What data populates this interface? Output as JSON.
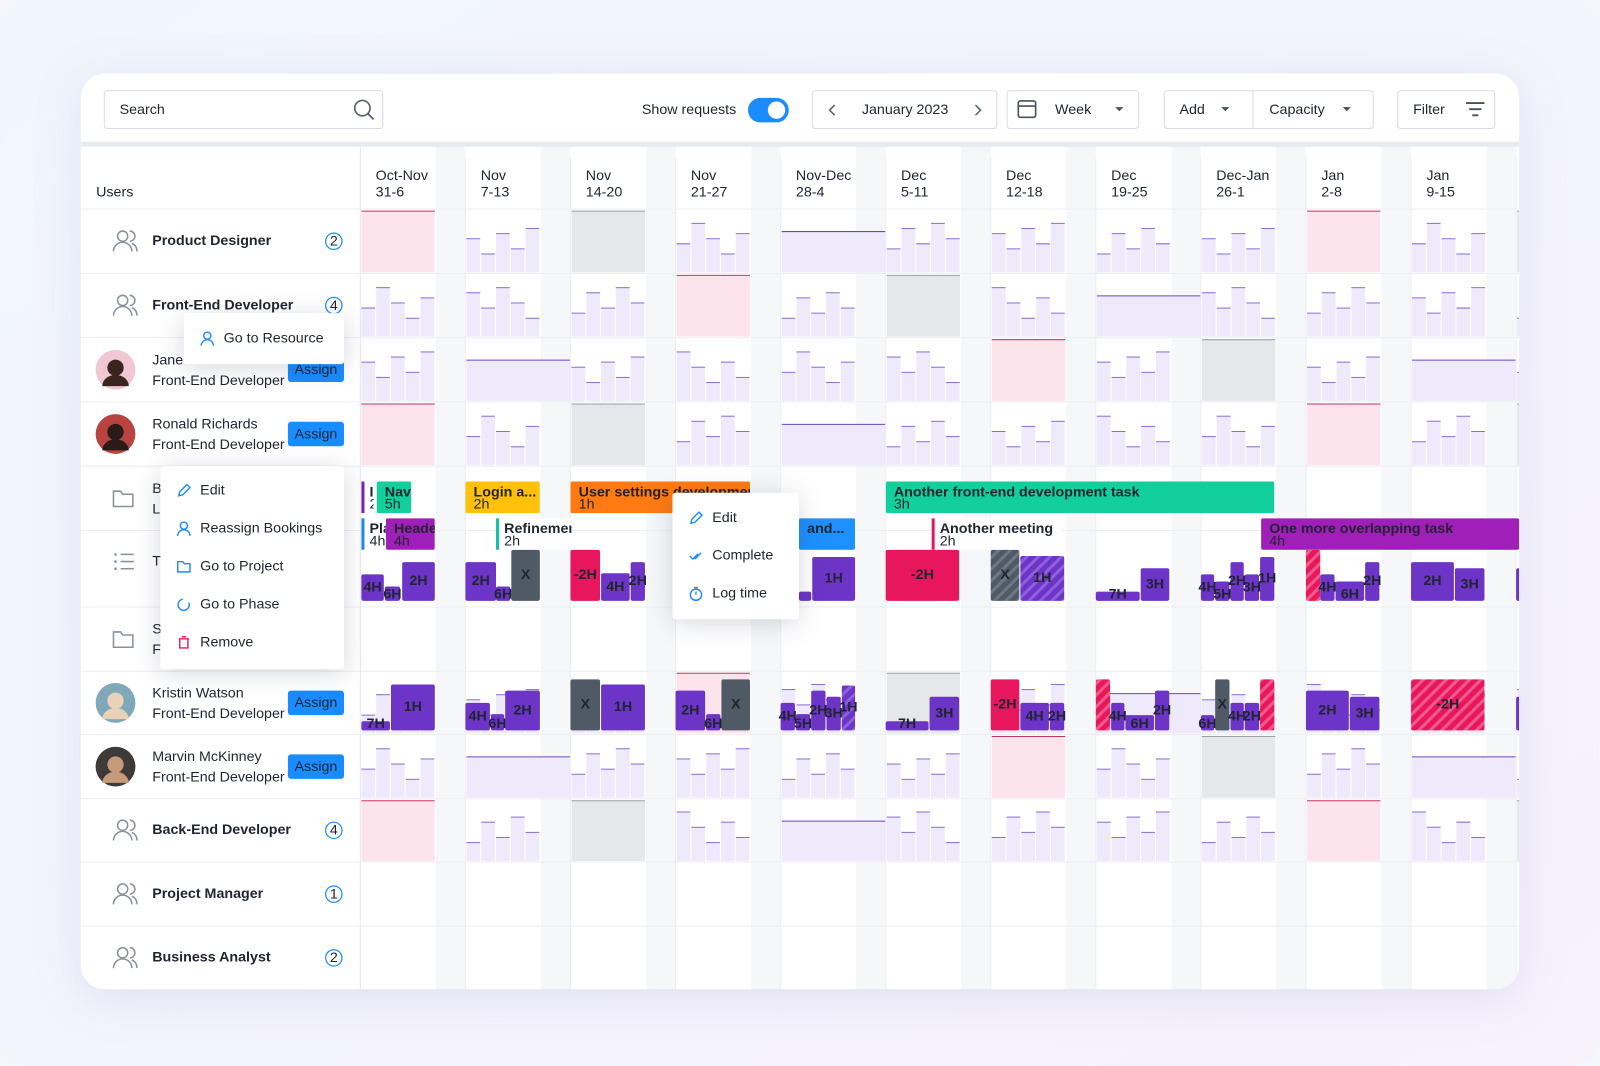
{
  "toolbar": {
    "search_placeholder": "Search",
    "show_requests": "Show requests",
    "month": "January 2023",
    "view": "Week",
    "add": "Add",
    "capacity": "Capacity",
    "filter": "Filter"
  },
  "grid": {
    "users_header": "Users",
    "weeks": [
      {
        "months": "Oct-Nov",
        "days": "31-6"
      },
      {
        "months": "Nov",
        "days": "7-13"
      },
      {
        "months": "Nov",
        "days": "14-20"
      },
      {
        "months": "Nov",
        "days": "21-27"
      },
      {
        "months": "Nov-Dec",
        "days": "28-4"
      },
      {
        "months": "Dec",
        "days": "5-11"
      },
      {
        "months": "Dec",
        "days": "12-18"
      },
      {
        "months": "Dec",
        "days": "19-25"
      },
      {
        "months": "Dec-Jan",
        "days": "26-1"
      },
      {
        "months": "Jan",
        "days": "2-8"
      },
      {
        "months": "Jan",
        "days": "9-15"
      }
    ]
  },
  "rows": [
    {
      "kind": "group",
      "label": "Product Designer",
      "count": 2
    },
    {
      "kind": "group",
      "label": "Front-End Developer",
      "count": 4
    },
    {
      "kind": "person",
      "name": "Jane",
      "role": "Front-End Developer",
      "action": "Assign"
    },
    {
      "kind": "person",
      "name": "Ronald Richards",
      "role": "Front-End Developer",
      "action": "Assign"
    },
    {
      "kind": "project",
      "name": "B",
      "sub": "L"
    },
    {
      "kind": "list",
      "name": "T"
    },
    {
      "kind": "project",
      "name": "S",
      "sub": "F"
    },
    {
      "kind": "person",
      "name": "Kristin Watson",
      "role": "Front-End Developer",
      "action": "Assign"
    },
    {
      "kind": "person",
      "name": "Marvin McKinney",
      "role": "Front-End Developer",
      "action": "Assign"
    },
    {
      "kind": "group",
      "label": "Back-End Developer",
      "count": 4
    },
    {
      "kind": "group",
      "label": "Project Manager",
      "count": 1
    },
    {
      "kind": "group",
      "label": "Business Analyst",
      "count": 2
    }
  ],
  "tasks": [
    {
      "title": "Ir",
      "duration": "2"
    },
    {
      "title": "Navi",
      "duration": "5h"
    },
    {
      "title": "Login a...",
      "duration": "2h"
    },
    {
      "title": "User settings development",
      "duration": "1h"
    },
    {
      "title": "Another front-end development task",
      "duration": "3h"
    },
    {
      "title": "Pla",
      "duration": "4h"
    },
    {
      "title": "Header",
      "duration": "4h"
    },
    {
      "title": "Refinement",
      "duration": "2h"
    },
    {
      "title": "and..."
    },
    {
      "title": "Another meeting",
      "duration": "2h"
    },
    {
      "title": "One more overlapping task",
      "duration": "4h"
    }
  ],
  "t_row_blocks": [
    "4H",
    "6H",
    "2H",
    "2H",
    "6H",
    "X",
    "-2H",
    "4H",
    "2H",
    "1H",
    "-2H",
    "X",
    "1H",
    "7H",
    "3H",
    "4H",
    "5H",
    "2H",
    "3H",
    "1H",
    "4H",
    "6H",
    "2H",
    "2H",
    "3H"
  ],
  "kristin_row_blocks": [
    "7H",
    "1H",
    "4H",
    "6H",
    "2H",
    "X",
    "1H",
    "2H",
    "6H",
    "X",
    "4H",
    "5H",
    "2H",
    "3H",
    "1H",
    "7H",
    "3H",
    "-2H",
    "4H",
    "2H",
    "4H",
    "6H",
    "2H",
    "6H",
    "X",
    "4H",
    "2H",
    "2H",
    "3H",
    "-2H"
  ],
  "menus": {
    "resource": [
      "Go to Resource"
    ],
    "booking": [
      "Edit",
      "Reassign Bookings",
      "Go to Project",
      "Go to Phase",
      "Remove"
    ],
    "task": [
      "Edit",
      "Complete",
      "Log time"
    ]
  }
}
